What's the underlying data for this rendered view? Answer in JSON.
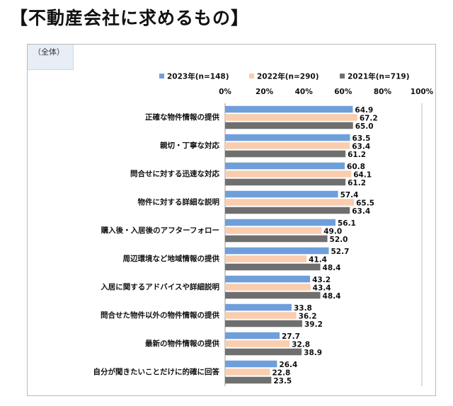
{
  "title": "【不動産会社に求めるもの】",
  "scope_label": "（全体）",
  "chart_data": {
    "type": "bar",
    "orientation": "horizontal",
    "categories": [
      "正確な物件情報の提供",
      "親切・丁寧な対応",
      "問合せに対する迅速な対応",
      "物件に対する詳細な説明",
      "購入後・入居後のアフターフォロー",
      "周辺環境など地域情報の提供",
      "入居に関するアドバイスや詳細説明",
      "問合せた物件以外の物件情報の提供",
      "最新の物件情報の提供",
      "自分が聞きたいことだけに的確に回答"
    ],
    "series": [
      {
        "name": "2023年(n=148)",
        "color": "#6f9fdb",
        "values": [
          64.9,
          63.5,
          60.8,
          57.4,
          56.1,
          52.7,
          43.2,
          33.8,
          27.7,
          26.4
        ]
      },
      {
        "name": "2022年(n=290)",
        "color": "#f9cdae",
        "values": [
          67.2,
          63.4,
          64.1,
          65.5,
          49.0,
          41.4,
          43.4,
          36.2,
          32.8,
          22.8
        ]
      },
      {
        "name": "2021年(n=719)",
        "color": "#6f6f6f",
        "values": [
          65.0,
          61.2,
          61.2,
          63.4,
          52.0,
          48.4,
          48.4,
          39.2,
          38.9,
          23.5
        ]
      }
    ],
    "value_labels": [
      [
        "64.9",
        "63.5",
        "60.8",
        "57.4",
        "56.1",
        "52.7",
        "43.2",
        "33.8",
        "27.7",
        "26.4"
      ],
      [
        "67.2",
        "63.4",
        "64.1",
        "65.5",
        "49.0",
        "41.4",
        "43.4",
        "36.2",
        "32.8",
        "22.8"
      ],
      [
        "65.0",
        "61.2",
        "61.2",
        "63.4",
        "52.0",
        "48.4",
        "48.4",
        "39.2",
        "38.9",
        "23.5"
      ]
    ],
    "xlim": [
      0,
      100
    ],
    "xticks": [
      "0%",
      "20%",
      "40%",
      "60%",
      "80%",
      "100%"
    ],
    "legend_position": "top",
    "grid": false
  }
}
